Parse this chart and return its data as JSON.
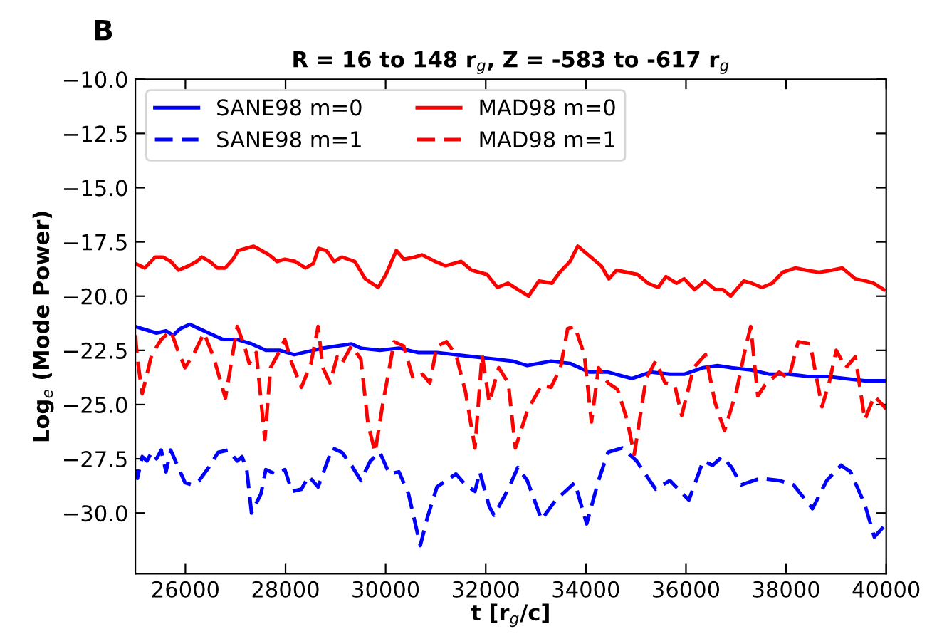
{
  "chart_data": {
    "type": "line",
    "title": "R = 16 to 148 r$_{g}$, Z = -583 to -617 r$_{g}$",
    "xlabel": "t [r$_{g}$/c]",
    "ylabel": "Log$_{e}$ (Mode Power)",
    "annotations": [
      "B"
    ],
    "xlim": [
      25000,
      40000
    ],
    "xticks": [
      26000,
      28000,
      30000,
      32000,
      34000,
      36000,
      38000,
      40000
    ],
    "ylim": [
      -32.8,
      -10
    ],
    "yticks": [
      {
        "value": -10,
        "label": "−10.0"
      },
      {
        "value": -12.5,
        "label": "−12.5"
      },
      {
        "value": -15,
        "label": "−15.0"
      },
      {
        "value": -17.5,
        "label": "−17.5"
      },
      {
        "value": -20,
        "label": "−20.0"
      },
      {
        "value": -22.5,
        "label": "−22.5"
      },
      {
        "value": -25,
        "label": "−25.0"
      },
      {
        "value": -27.5,
        "label": "−27.5"
      },
      {
        "value": -30,
        "label": "−30.0"
      }
    ],
    "grid": false,
    "legend": "top left",
    "series": [
      {
        "name": "SANE98 m=0",
        "color": "#0000ff",
        "line_style": "solid",
        "x": [
          25000,
          25137,
          25422,
          25612,
          25754,
          25897,
          26087,
          26276,
          26466,
          26751,
          27036,
          27321,
          27606,
          27891,
          28176,
          28366,
          28556,
          28746,
          29031,
          29316,
          29505,
          29885,
          30265,
          30645,
          31025,
          31405,
          31785,
          32165,
          32545,
          32829,
          33304,
          33684,
          34064,
          34443,
          34918,
          35298,
          35678,
          35963,
          36343,
          36628,
          36913,
          37293,
          37672,
          38052,
          38432,
          38812,
          39192,
          39572,
          40000
        ],
        "values": [
          -21.4,
          -21.5,
          -21.7,
          -21.6,
          -21.8,
          -21.5,
          -21.3,
          -21.5,
          -21.7,
          -22.0,
          -22.0,
          -22.2,
          -22.5,
          -22.5,
          -22.7,
          -22.6,
          -22.5,
          -22.4,
          -22.3,
          -22.2,
          -22.4,
          -22.5,
          -22.4,
          -22.6,
          -22.6,
          -22.7,
          -22.8,
          -22.9,
          -23.0,
          -23.2,
          -23.0,
          -23.1,
          -23.5,
          -23.5,
          -23.8,
          -23.5,
          -23.6,
          -23.6,
          -23.3,
          -23.2,
          -23.3,
          -23.4,
          -23.6,
          -23.6,
          -23.7,
          -23.7,
          -23.8,
          -23.9,
          -23.9
        ]
      },
      {
        "name": "SANE98 m=1",
        "color": "#0000ff",
        "line_style": "dashed",
        "x": [
          25000,
          25042,
          25137,
          25232,
          25327,
          25422,
          25517,
          25612,
          25707,
          25802,
          25992,
          26134,
          26276,
          26466,
          26656,
          26846,
          27036,
          27131,
          27226,
          27321,
          27511,
          27606,
          27796,
          27986,
          28128,
          28318,
          28461,
          28651,
          28936,
          29126,
          29316,
          29505,
          29695,
          29885,
          30075,
          30265,
          30455,
          30692,
          30835,
          31025,
          31215,
          31405,
          31595,
          31785,
          31880,
          32070,
          32165,
          32450,
          32640,
          32829,
          33114,
          33399,
          33779,
          34016,
          34253,
          34443,
          34728,
          35013,
          35393,
          35678,
          36058,
          36343,
          36533,
          36723,
          36913,
          37103,
          37482,
          37862,
          38147,
          38527,
          38812,
          39097,
          39287,
          39572,
          39762,
          40000
        ],
        "values": [
          -28.0,
          -28.4,
          -27.4,
          -27.6,
          -27.2,
          -27.5,
          -27.1,
          -28.1,
          -27.1,
          -27.6,
          -28.6,
          -28.7,
          -28.5,
          -27.9,
          -27.2,
          -27.1,
          -27.6,
          -27.4,
          -28.0,
          -30.0,
          -29.1,
          -28.0,
          -28.2,
          -28.0,
          -29.0,
          -28.9,
          -28.3,
          -28.8,
          -27.0,
          -27.2,
          -27.8,
          -28.5,
          -27.6,
          -27.2,
          -28.2,
          -28.1,
          -29.1,
          -31.5,
          -30.2,
          -28.8,
          -28.5,
          -28.2,
          -28.7,
          -29.0,
          -28.1,
          -29.7,
          -30.1,
          -28.9,
          -27.9,
          -28.5,
          -30.3,
          -29.4,
          -28.6,
          -30.5,
          -28.5,
          -27.2,
          -27.0,
          -27.6,
          -28.9,
          -28.5,
          -29.4,
          -27.6,
          -27.8,
          -27.4,
          -27.9,
          -28.7,
          -28.4,
          -28.5,
          -28.7,
          -29.8,
          -28.5,
          -27.8,
          -28.1,
          -29.6,
          -31.1,
          -30.5
        ]
      },
      {
        "name": "MAD98 m=0",
        "color": "#ff0000",
        "line_style": "solid",
        "x": [
          25000,
          25189,
          25396,
          25551,
          25707,
          25862,
          26069,
          26225,
          26328,
          26484,
          26639,
          26794,
          26950,
          27053,
          27209,
          27364,
          27520,
          27675,
          27830,
          27986,
          28193,
          28400,
          28556,
          28659,
          28815,
          28970,
          29126,
          29384,
          29592,
          29851,
          30006,
          30213,
          30369,
          30576,
          30731,
          30990,
          31197,
          31508,
          31715,
          32026,
          32233,
          32441,
          32648,
          32855,
          33062,
          33321,
          33477,
          33684,
          33839,
          34098,
          34305,
          34461,
          34616,
          34823,
          35031,
          35238,
          35445,
          35600,
          35808,
          35963,
          36170,
          36377,
          36585,
          36740,
          36895,
          37154,
          37310,
          37517,
          37724,
          37931,
          38190,
          38397,
          38656,
          38915,
          39122,
          39381,
          39589,
          39744,
          39951
        ],
        "values": [
          -18.5,
          -18.7,
          -18.2,
          -18.2,
          -18.4,
          -18.8,
          -18.6,
          -18.4,
          -18.2,
          -18.4,
          -18.7,
          -18.7,
          -18.3,
          -17.9,
          -17.8,
          -17.7,
          -17.9,
          -18.1,
          -18.4,
          -18.3,
          -18.4,
          -18.7,
          -18.5,
          -17.8,
          -17.9,
          -18.4,
          -18.2,
          -18.4,
          -19.2,
          -19.6,
          -19.0,
          -17.9,
          -18.3,
          -18.2,
          -18.1,
          -18.4,
          -18.6,
          -18.4,
          -18.8,
          -19.0,
          -19.6,
          -19.4,
          -19.7,
          -20.0,
          -19.3,
          -19.4,
          -18.9,
          -18.4,
          -17.7,
          -18.2,
          -18.6,
          -19.2,
          -18.8,
          -18.9,
          -19.0,
          -19.4,
          -19.6,
          -19.1,
          -19.4,
          -19.2,
          -19.7,
          -19.3,
          -19.7,
          -19.7,
          -20.0,
          -19.3,
          -19.4,
          -19.6,
          -19.4,
          -18.9,
          -18.7,
          -18.8,
          -18.9,
          -18.8,
          -18.7,
          -19.2,
          -19.3,
          -19.4,
          -19.7
        ]
      },
      {
        "name": "MAD98 m=1",
        "color": "#ff0000",
        "line_style": "dashed",
        "x": [
          25000,
          25042,
          25137,
          25327,
          25517,
          25707,
          25849,
          25992,
          26182,
          26371,
          26561,
          26799,
          27036,
          27179,
          27274,
          27416,
          27587,
          27701,
          27844,
          27986,
          28128,
          28318,
          28508,
          28651,
          28746,
          28888,
          29031,
          29126,
          29316,
          29505,
          29648,
          29790,
          29933,
          30170,
          30360,
          30550,
          30740,
          30882,
          31025,
          31215,
          31405,
          31595,
          31785,
          31927,
          32070,
          32260,
          32450,
          32592,
          32829,
          32924,
          33114,
          33304,
          33494,
          33636,
          33779,
          33969,
          34111,
          34253,
          34443,
          34633,
          34823,
          34966,
          35203,
          35393,
          35583,
          35773,
          35915,
          36153,
          36390,
          36580,
          36770,
          37007,
          37197,
          37293,
          37434,
          37577,
          37862,
          38052,
          38242,
          38480,
          38717,
          38860,
          39002,
          39192,
          39382,
          39572,
          39762,
          40000
        ],
        "values": [
          -21.8,
          -22.9,
          -24.5,
          -22.7,
          -22.0,
          -21.6,
          -22.5,
          -23.3,
          -22.6,
          -21.7,
          -22.8,
          -24.7,
          -21.4,
          -22.3,
          -23.1,
          -22.6,
          -26.6,
          -23.3,
          -22.7,
          -22.0,
          -23.1,
          -24.2,
          -23.1,
          -21.4,
          -23.3,
          -24.0,
          -22.8,
          -23.1,
          -22.3,
          -22.9,
          -25.9,
          -27.2,
          -25.1,
          -22.1,
          -22.3,
          -23.8,
          -23.6,
          -24.0,
          -22.3,
          -22.1,
          -22.7,
          -24.4,
          -27.0,
          -22.7,
          -24.9,
          -23.3,
          -24.0,
          -27.0,
          -25.3,
          -24.9,
          -24.1,
          -24.2,
          -23.3,
          -21.5,
          -21.4,
          -22.7,
          -25.8,
          -23.3,
          -24.0,
          -24.3,
          -25.7,
          -27.3,
          -23.8,
          -23.0,
          -24.0,
          -24.1,
          -25.5,
          -23.3,
          -22.7,
          -24.9,
          -26.2,
          -24.4,
          -22.3,
          -21.4,
          -24.6,
          -24.1,
          -23.5,
          -23.8,
          -22.1,
          -22.2,
          -25.1,
          -24.0,
          -22.5,
          -23.3,
          -22.8,
          -25.7,
          -24.6,
          -25.2
        ]
      }
    ]
  }
}
